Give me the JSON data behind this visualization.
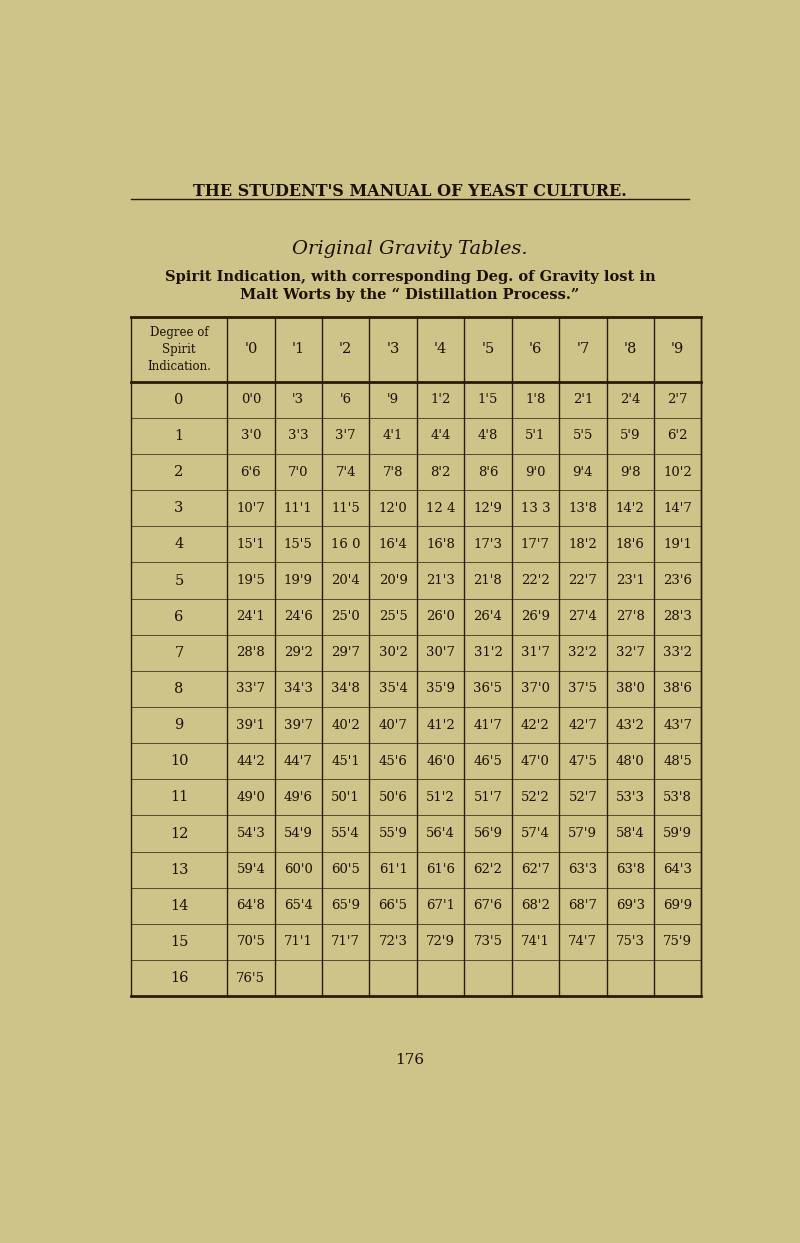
{
  "page_title": "THE STUDENT'S MANUAL OF YEAST CULTURE.",
  "table_title": "Original Gravity Tables.",
  "table_subtitle1": "Spirit Indication, with corresponding Deg. of Gravity lost in",
  "table_subtitle2": "Malt Worts by the “ Distillation Process.”",
  "header_col": "Degree of\nSpirit\nIndication.",
  "col_headers": [
    "'0",
    "'1",
    "'2",
    "'3",
    "'4",
    "'5",
    "'6",
    "'7",
    "'8",
    "'9"
  ],
  "row_labels": [
    "0",
    "1",
    "2",
    "3",
    "4",
    "5",
    "6",
    "7",
    "8",
    "9",
    "10",
    "11",
    "12",
    "13",
    "14",
    "15",
    "16"
  ],
  "table_data": [
    [
      "0'0",
      "'3",
      "'6",
      "'9",
      "1'2",
      "1'5",
      "1'8",
      "2'1",
      "2'4",
      "2'7"
    ],
    [
      "3'0",
      "3'3",
      "3'7",
      "4'1",
      "4'4",
      "4'8",
      "5'1",
      "5'5",
      "5'9",
      "6'2"
    ],
    [
      "6'6",
      "7'0",
      "7'4",
      "7'8",
      "8'2",
      "8'6",
      "9'0",
      "9'4",
      "9'8",
      "10'2"
    ],
    [
      "10'7",
      "11'1",
      "11'5",
      "12'0",
      "12 4",
      "12'9",
      "13 3",
      "13'8",
      "14'2",
      "14'7"
    ],
    [
      "15'1",
      "15'5",
      "16 0",
      "16'4",
      "16'8",
      "17'3",
      "17'7",
      "18'2",
      "18'6",
      "19'1"
    ],
    [
      "19'5",
      "19'9",
      "20'4",
      "20'9",
      "21'3",
      "21'8",
      "22'2",
      "22'7",
      "23'1",
      "23'6"
    ],
    [
      "24'1",
      "24'6",
      "25'0",
      "25'5",
      "26'0",
      "26'4",
      "26'9",
      "27'4",
      "27'8",
      "28'3"
    ],
    [
      "28'8",
      "29'2",
      "29'7",
      "30'2",
      "30'7",
      "31'2",
      "31'7",
      "32'2",
      "32'7",
      "33'2"
    ],
    [
      "33'7",
      "34'3",
      "34'8",
      "35'4",
      "35'9",
      "36'5",
      "37'0",
      "37'5",
      "38'0",
      "38'6"
    ],
    [
      "39'1",
      "39'7",
      "40'2",
      "40'7",
      "41'2",
      "41'7",
      "42'2",
      "42'7",
      "43'2",
      "43'7"
    ],
    [
      "44'2",
      "44'7",
      "45'1",
      "45'6",
      "46'0",
      "46'5",
      "47'0",
      "47'5",
      "48'0",
      "48'5"
    ],
    [
      "49'0",
      "49'6",
      "50'1",
      "50'6",
      "51'2",
      "51'7",
      "52'2",
      "52'7",
      "53'3",
      "53'8"
    ],
    [
      "54'3",
      "54'9",
      "55'4",
      "55'9",
      "56'4",
      "56'9",
      "57'4",
      "57'9",
      "58'4",
      "59'9"
    ],
    [
      "59'4",
      "60'0",
      "60'5",
      "61'1",
      "61'6",
      "62'2",
      "62'7",
      "63'3",
      "63'8",
      "64'3"
    ],
    [
      "64'8",
      "65'4",
      "65'9",
      "66'5",
      "67'1",
      "67'6",
      "68'2",
      "68'7",
      "69'3",
      "69'9"
    ],
    [
      "70'5",
      "71'1",
      "71'7",
      "72'3",
      "72'9",
      "73'5",
      "74'1",
      "74'7",
      "75'3",
      "75'9"
    ],
    [
      "76'5",
      "",
      "",
      "",
      "",
      "",
      "",
      "",
      "",
      ""
    ]
  ],
  "page_number": "176",
  "bg_color": "#cec48a",
  "text_color": "#1a1008",
  "line_color": "#2a1a08"
}
